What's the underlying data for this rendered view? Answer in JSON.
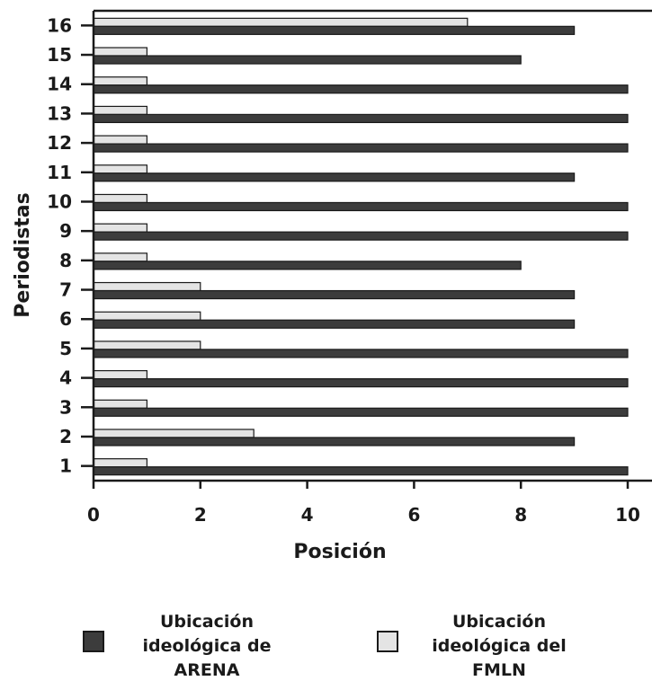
{
  "chart_data": {
    "type": "bar",
    "orientation": "horizontal",
    "categories": [
      "1",
      "2",
      "3",
      "4",
      "5",
      "6",
      "7",
      "8",
      "9",
      "10",
      "11",
      "12",
      "13",
      "14",
      "15",
      "16"
    ],
    "series": [
      {
        "name": "Ubicación ideológica de ARENA",
        "color": "#3c3c3c",
        "values": [
          10,
          9,
          10,
          10,
          10,
          9,
          9,
          8,
          10,
          10,
          9,
          10,
          10,
          10,
          8,
          9
        ]
      },
      {
        "name": "Ubicación ideológica del FMLN",
        "color": "#e4e4e4",
        "values": [
          1,
          3,
          1,
          1,
          2,
          2,
          2,
          1,
          1,
          1,
          1,
          1,
          1,
          1,
          1,
          7
        ]
      }
    ],
    "xlabel": "Posición",
    "ylabel": "Periodistas",
    "xlim": [
      0,
      10
    ],
    "xticks": [
      "0",
      "2",
      "4",
      "6",
      "8",
      "10"
    ],
    "grid": false,
    "legend_position": "bottom"
  },
  "legend": [
    {
      "lines": [
        "Ubicación",
        "ideológica de",
        "ARENA"
      ],
      "color": "#3c3c3c"
    },
    {
      "lines": [
        "Ubicación",
        "ideológica del",
        "FMLN"
      ],
      "color": "#e4e4e4"
    }
  ]
}
